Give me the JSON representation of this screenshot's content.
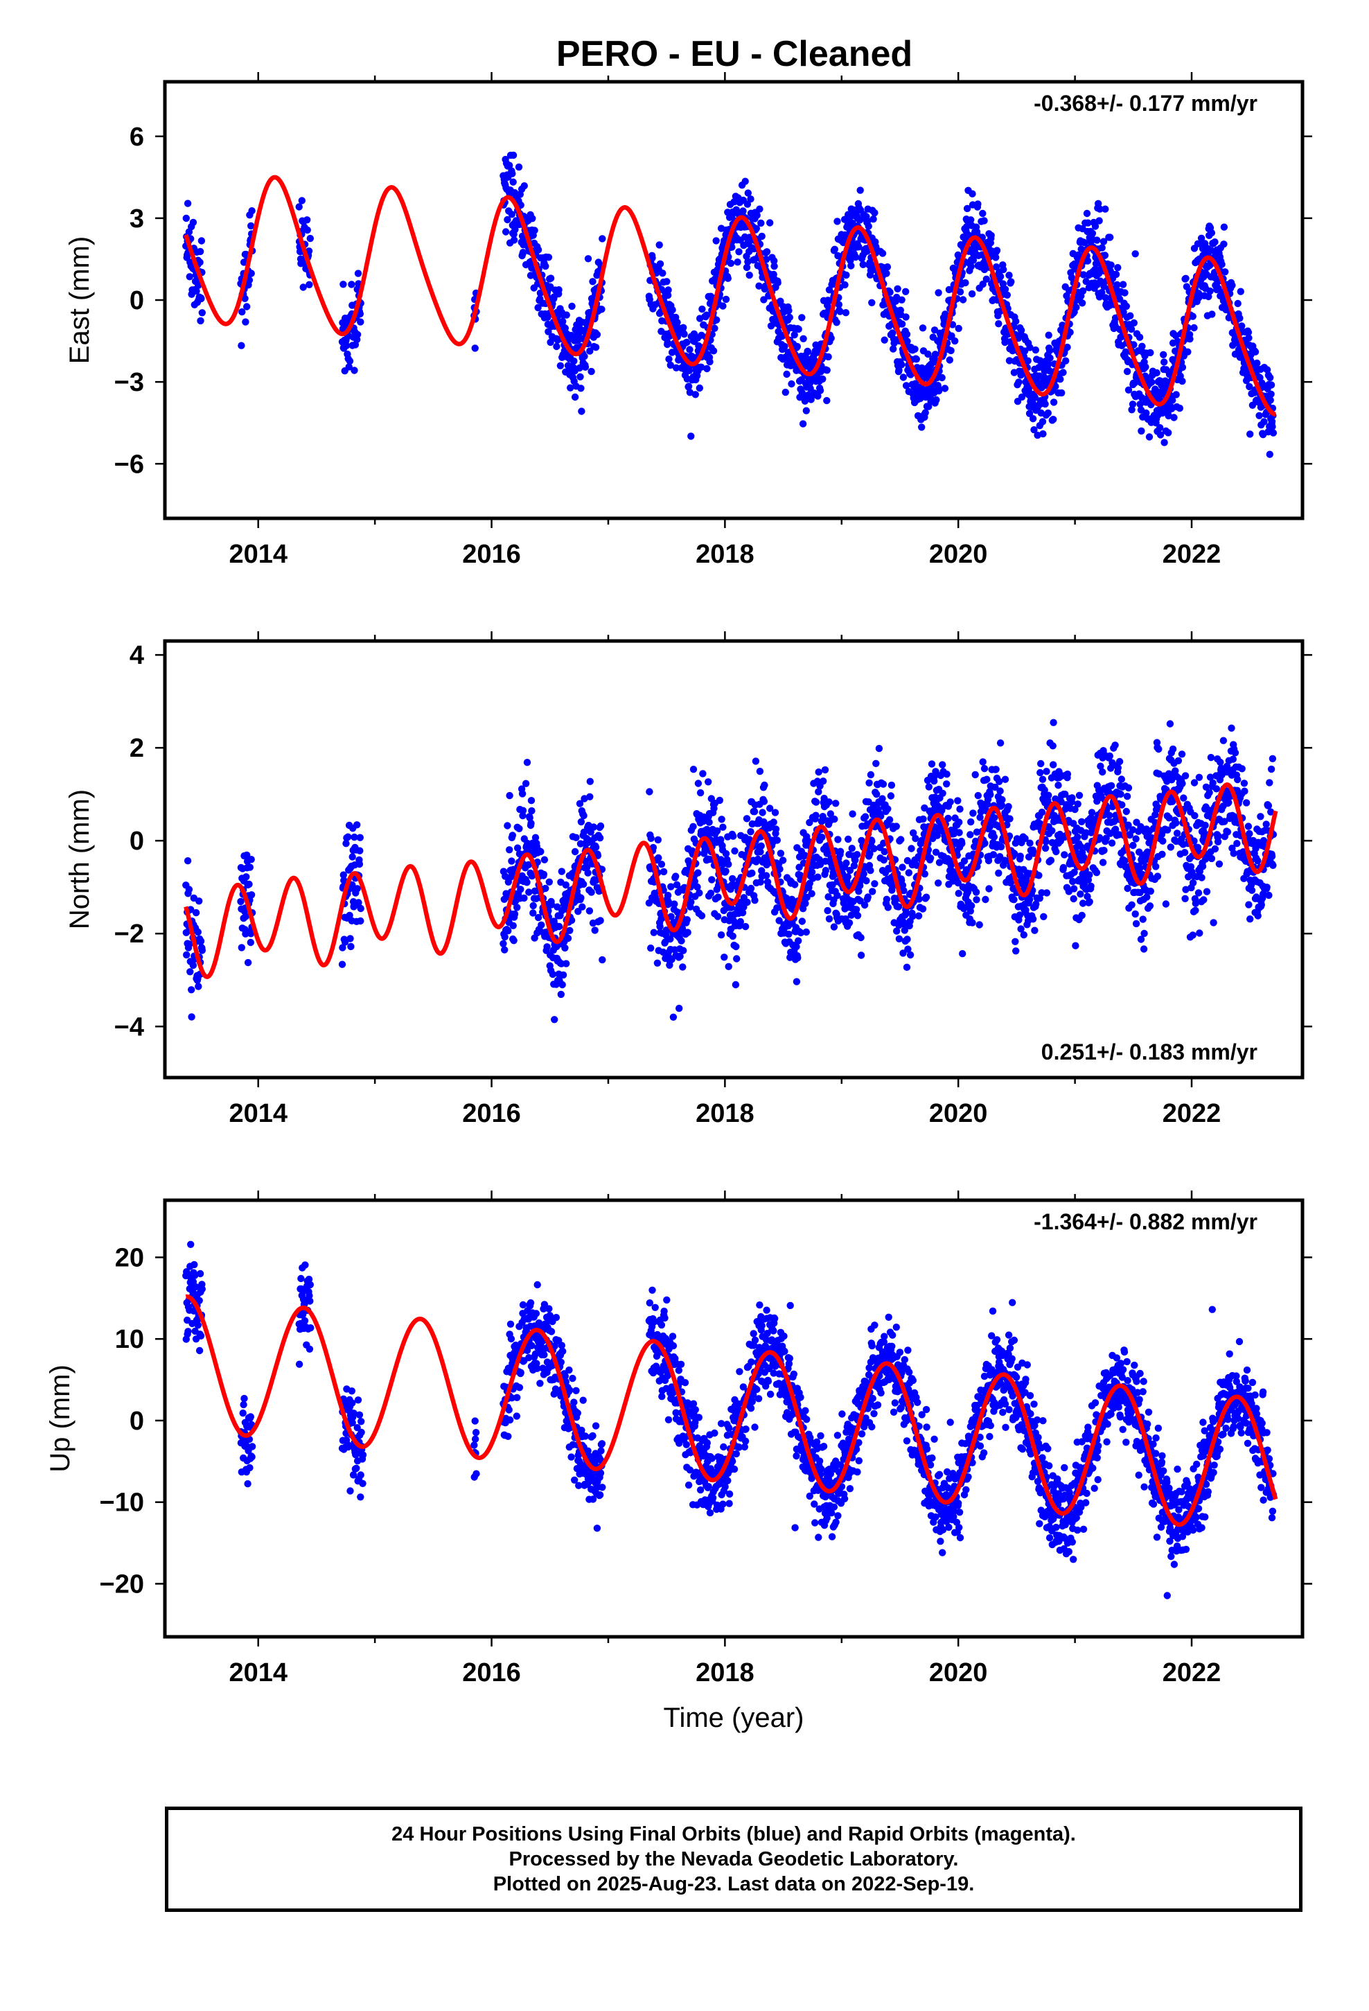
{
  "title": "PERO  - EU - Cleaned",
  "chart_data": [
    {
      "type": "scatter",
      "component": "East",
      "ylabel": "East (mm)",
      "xlabel": "",
      "trend_text": "-0.368+/- 0.177 mm/yr",
      "trend_position": "top-right",
      "xlim": [
        2013.2,
        2022.95
      ],
      "ylim": [
        -8,
        8
      ],
      "xticks": [
        2014,
        2016,
        2018,
        2020,
        2022
      ],
      "xtick_labels": [
        "2014",
        "2016",
        "2018",
        "2020",
        "2022"
      ],
      "yticks": [
        -6,
        -3,
        0,
        3,
        6
      ],
      "ytick_labels": [
        "−6",
        "−3",
        "0",
        "3",
        "6"
      ],
      "grid": false,
      "series": [
        {
          "name": "Final Orbits (blue)",
          "color": "#0000ff",
          "segments": [
            [
              2013.38,
              2013.52
            ],
            [
              2013.85,
              2013.95
            ],
            [
              2014.35,
              2014.45
            ],
            [
              2014.72,
              2014.88
            ],
            [
              2015.85,
              2015.87
            ],
            [
              2016.1,
              2016.95
            ],
            [
              2017.35,
              2022.7
            ]
          ],
          "model": {
            "offset": 1.9,
            "rate": -0.368,
            "t0": 2013.4,
            "s1": 2.4,
            "c1": 1.2,
            "s2": 0.3,
            "c2": 0.2
          },
          "noise": 1.0
        },
        {
          "name": "Model fit",
          "color": "#ff0000",
          "kind": "line",
          "model": {
            "offset": 1.9,
            "rate": -0.368,
            "t0": 2013.4,
            "s1": 2.4,
            "c1": 1.2,
            "s2": 0.3,
            "c2": 0.2
          },
          "range": [
            2013.38,
            2022.72
          ]
        }
      ]
    },
    {
      "type": "scatter",
      "component": "North",
      "ylabel": "North (mm)",
      "xlabel": "",
      "trend_text": "0.251+/- 0.183 mm/yr",
      "trend_position": "bottom-right",
      "xlim": [
        2013.2,
        2022.95
      ],
      "ylim": [
        -5.1,
        4.3
      ],
      "xticks": [
        2014,
        2016,
        2018,
        2020,
        2022
      ],
      "xtick_labels": [
        "2014",
        "2016",
        "2018",
        "2020",
        "2022"
      ],
      "yticks": [
        -4,
        -2,
        0,
        2,
        4
      ],
      "ytick_labels": [
        "−4",
        "−2",
        "0",
        "2",
        "4"
      ],
      "grid": false,
      "series": [
        {
          "name": "Final Orbits (blue)",
          "color": "#0000ff",
          "segments": [
            [
              2013.38,
              2013.52
            ],
            [
              2013.85,
              2013.95
            ],
            [
              2014.72,
              2014.88
            ],
            [
              2016.1,
              2016.95
            ],
            [
              2017.35,
              2022.7
            ]
          ],
          "model": {
            "offset": -1.9,
            "rate": 0.251,
            "t0": 2013.4,
            "s1": 0.1,
            "c1": 0.2,
            "s2": -0.6,
            "c2": -0.6
          },
          "noise": 0.85
        },
        {
          "name": "Model fit",
          "color": "#ff0000",
          "kind": "line",
          "model": {
            "offset": -1.9,
            "rate": 0.251,
            "t0": 2013.4,
            "s1": 0.1,
            "c1": 0.2,
            "s2": -0.6,
            "c2": -0.6
          },
          "range": [
            2013.38,
            2022.72
          ]
        }
      ]
    },
    {
      "type": "scatter",
      "component": "Up",
      "ylabel": "Up (mm)",
      "xlabel": "Time (year)",
      "trend_text": "-1.364+/- 0.882 mm/yr",
      "trend_position": "top-right",
      "xlim": [
        2013.2,
        2022.95
      ],
      "ylim": [
        -26.5,
        27
      ],
      "xticks": [
        2014,
        2016,
        2018,
        2020,
        2022
      ],
      "xtick_labels": [
        "2014",
        "2016",
        "2018",
        "2020",
        "2022"
      ],
      "yticks": [
        -20,
        -10,
        0,
        10,
        20
      ],
      "ytick_labels": [
        "−20",
        "−10",
        "0",
        "10",
        "20"
      ],
      "grid": false,
      "series": [
        {
          "name": "Final Orbits (blue)",
          "color": "#0000ff",
          "segments": [
            [
              2013.38,
              2013.52
            ],
            [
              2013.85,
              2013.95
            ],
            [
              2014.35,
              2014.45
            ],
            [
              2014.72,
              2014.9
            ],
            [
              2015.85,
              2015.87
            ],
            [
              2016.1,
              2016.95
            ],
            [
              2017.35,
              2022.7
            ]
          ],
          "model": {
            "offset": 7.0,
            "rate": -1.364,
            "t0": 2013.4,
            "s1": 5.2,
            "c1": -6.3,
            "s2": 0.0,
            "c2": 0.0
          },
          "noise": 3.5
        },
        {
          "name": "Model fit",
          "color": "#ff0000",
          "kind": "line",
          "model": {
            "offset": 7.0,
            "rate": -1.364,
            "t0": 2013.4,
            "s1": 5.2,
            "c1": -6.3,
            "s2": 0.0,
            "c2": 0.0
          },
          "range": [
            2013.38,
            2022.72
          ]
        }
      ]
    }
  ],
  "caption": {
    "line1": "24 Hour Positions Using Final Orbits (blue) and Rapid Orbits (magenta).",
    "line2": "Processed by the Nevada Geodetic Laboratory.",
    "line3": "Plotted on 2025-Aug-23. Last data on 2022-Sep-19."
  }
}
